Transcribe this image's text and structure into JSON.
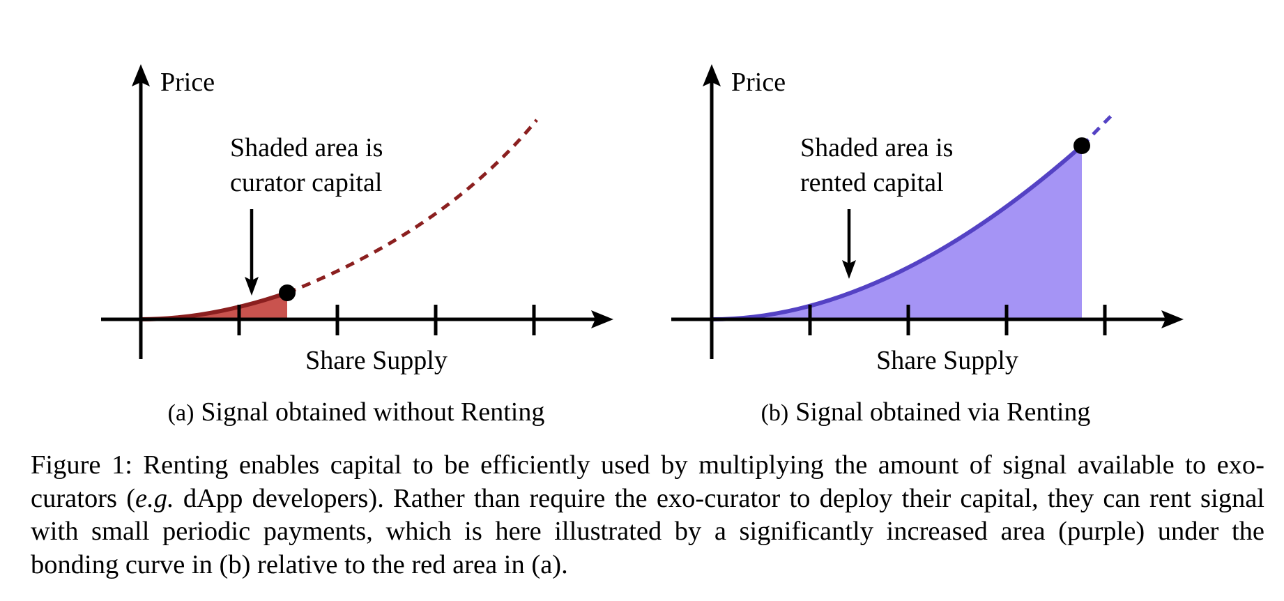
{
  "colors": {
    "red_curve": "#8b1f1f",
    "red_fill": "#c9534e",
    "purple_curve": "#5442c4",
    "purple_fill": "#a594f5",
    "axis": "#000000"
  },
  "panels": [
    {
      "id": "a",
      "ylabel": "Price",
      "xlabel": "Share Supply",
      "annotation_line1": "Shaded area is",
      "annotation_line2": "curator capital",
      "subcaption_label": "(a)",
      "subcaption_text": "Signal obtained without Renting"
    },
    {
      "id": "b",
      "ylabel": "Price",
      "xlabel": "Share Supply",
      "annotation_line1": "Shaded area is",
      "annotation_line2": "rented capital",
      "subcaption_label": "(b)",
      "subcaption_text": "Signal obtained via Renting"
    }
  ],
  "caption": {
    "prefix": "Figure 1: Renting enables capital to be efficiently used by multiplying the amount of signal available to exo-curators (",
    "italic": "e.g.",
    "suffix": " dApp developers). Rather than require the exo-curator to deploy their capital, they can rent signal with small periodic payments, which is here illustrated by a significantly increased area (purple) under the bonding curve in (b) relative to the red area in (a)."
  }
}
